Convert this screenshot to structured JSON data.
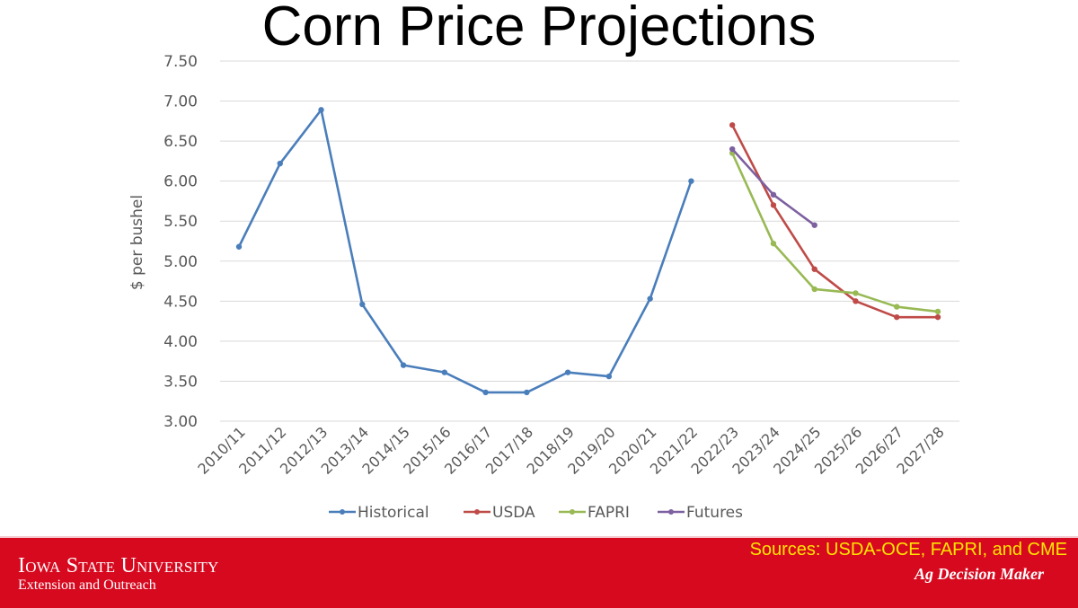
{
  "chart_data": {
    "type": "line",
    "title": "Corn Price Projections",
    "ylabel": "$ per bushel",
    "xlabel": "",
    "ylim": [
      3.0,
      7.5
    ],
    "yticks": [
      "3.00",
      "3.50",
      "4.00",
      "4.50",
      "5.00",
      "5.50",
      "6.00",
      "6.50",
      "7.00",
      "7.50"
    ],
    "grid": true,
    "legend_position": "bottom",
    "categories": [
      "2010/11",
      "2011/12",
      "2012/13",
      "2013/14",
      "2014/15",
      "2015/16",
      "2016/17",
      "2017/18",
      "2018/19",
      "2019/20",
      "2020/21",
      "2021/22",
      "2022/23",
      "2023/24",
      "2024/25",
      "2025/26",
      "2026/27",
      "2027/28"
    ],
    "series": [
      {
        "name": "Historical",
        "color": "#4a7ebb",
        "values": [
          5.18,
          6.22,
          6.89,
          4.46,
          3.7,
          3.61,
          3.36,
          3.36,
          3.61,
          3.56,
          4.53,
          6.0,
          null,
          null,
          null,
          null,
          null,
          null
        ]
      },
      {
        "name": "USDA",
        "color": "#be4b48",
        "values": [
          null,
          null,
          null,
          null,
          null,
          null,
          null,
          null,
          null,
          null,
          null,
          null,
          6.7,
          5.7,
          4.9,
          4.5,
          4.3,
          4.3
        ]
      },
      {
        "name": "FAPRI",
        "color": "#98b954",
        "values": [
          null,
          null,
          null,
          null,
          null,
          null,
          null,
          null,
          null,
          null,
          null,
          null,
          6.35,
          5.22,
          4.65,
          4.6,
          4.43,
          4.37
        ]
      },
      {
        "name": "Futures",
        "color": "#7d60a0",
        "values": [
          null,
          null,
          null,
          null,
          null,
          null,
          null,
          null,
          null,
          null,
          null,
          null,
          6.4,
          5.83,
          5.45,
          null,
          null,
          null
        ]
      }
    ]
  },
  "footer": {
    "university": "Iowa State University",
    "unit": "Extension and Outreach",
    "sources": "Sources: USDA-OCE, FAPRI, and CME",
    "program": "Ag Decision Maker"
  }
}
